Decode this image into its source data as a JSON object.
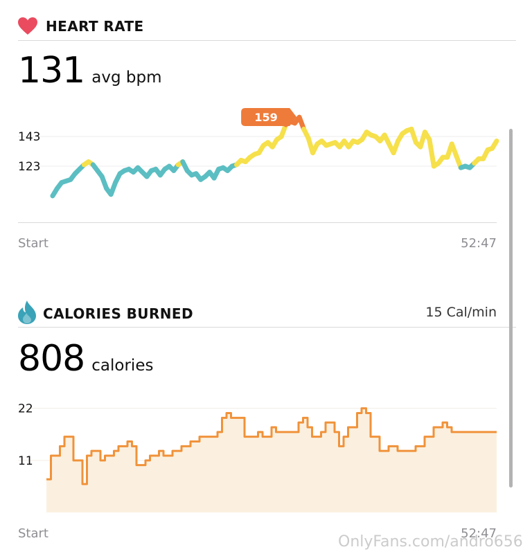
{
  "heart_rate": {
    "title": "HEART RATE",
    "icon": "heart-icon",
    "icon_color": "#ea4b5f",
    "value": "131",
    "unit": "avg bpm",
    "peak_label": "159",
    "start_label": "Start",
    "end_label": "52:47"
  },
  "calories": {
    "title": "CALORIES BURNED",
    "icon": "flame-icon",
    "icon_color": "#3aa3b8",
    "rate": "15 Cal/min",
    "value": "808",
    "unit": "calories",
    "start_label": "Start",
    "end_label": "52:47"
  },
  "watermark": "OnlyFans.com/andro656",
  "colors": {
    "hr_low": "#5bbec2",
    "hr_mid": "#f6e04b",
    "hr_high": "#ee7b3a",
    "cal_line": "#f0923a",
    "cal_fill": "#fbf0df",
    "divider": "#d9d9d9"
  },
  "chart_data": [
    {
      "type": "line",
      "title": "HEART RATE",
      "x_range": [
        "Start",
        "52:47"
      ],
      "yticks": [
        123,
        143
      ],
      "ylim": [
        95,
        165
      ],
      "peak": 159,
      "series": [
        {
          "values": [
            103,
            108,
            112,
            113,
            114,
            118,
            121,
            124,
            126,
            124,
            120,
            116,
            108,
            104,
            112,
            118,
            120,
            121,
            119,
            122,
            119,
            116,
            120,
            121,
            117,
            121,
            123,
            120,
            124,
            126,
            120,
            117,
            118,
            114,
            116,
            119,
            115,
            121,
            122,
            120,
            123,
            124,
            127,
            126,
            129,
            131,
            132,
            137,
            139,
            136,
            141,
            143,
            151,
            153,
            152,
            156,
            148,
            142,
            132,
            138,
            140,
            137,
            138,
            139,
            136,
            140,
            136,
            140,
            139,
            141,
            146,
            144,
            143,
            140,
            144,
            138,
            132,
            140,
            145,
            147,
            148,
            139,
            136,
            146,
            141,
            123,
            125,
            129,
            129,
            138,
            130,
            122,
            123,
            122,
            125,
            128,
            128,
            134,
            135,
            140
          ]
        }
      ]
    },
    {
      "type": "area",
      "title": "CALORIES BURNED",
      "x_range": [
        "Start",
        "52:47"
      ],
      "yticks": [
        11,
        22
      ],
      "ylim": [
        0,
        24
      ],
      "series": [
        {
          "values": [
            7,
            12,
            12,
            14,
            16,
            16,
            11,
            11,
            6,
            12,
            13,
            13,
            11,
            12,
            12,
            13,
            14,
            14,
            15,
            14,
            10,
            10,
            11,
            12,
            12,
            13,
            12,
            12,
            13,
            13,
            14,
            14,
            15,
            15,
            16,
            16,
            16,
            16,
            17,
            20,
            21,
            20,
            20,
            20,
            16,
            16,
            16,
            17,
            16,
            16,
            18,
            17,
            17,
            17,
            17,
            17,
            19,
            20,
            18,
            16,
            16,
            17,
            19,
            19,
            17,
            14,
            16,
            18,
            18,
            21,
            22,
            21,
            16,
            16,
            13,
            13,
            14,
            14,
            13,
            13,
            13,
            13,
            14,
            14,
            16,
            16,
            18,
            18,
            19,
            18,
            17,
            17,
            17,
            17,
            17,
            17,
            17,
            17,
            17,
            17
          ]
        }
      ]
    }
  ]
}
